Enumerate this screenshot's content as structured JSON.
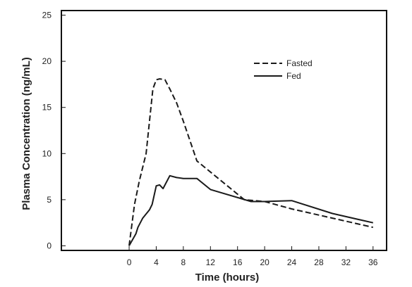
{
  "chart_data": {
    "type": "line",
    "title": "",
    "xlabel": "Time (hours)",
    "ylabel": "Plasma Concentration (ng/mL)",
    "xlim": [
      -10,
      38
    ],
    "ylim": [
      -0.5,
      25.5
    ],
    "xticks": [
      0,
      4,
      8,
      12,
      16,
      20,
      24,
      28,
      32,
      36
    ],
    "yticks": [
      0,
      5,
      10,
      15,
      20,
      25
    ],
    "grid": false,
    "legend_position": "top-right",
    "series": [
      {
        "name": "Fasted",
        "line_style": "dashed",
        "color": "#1a1a1a",
        "x": [
          0,
          0.8,
          1.5,
          2.5,
          3.5,
          4,
          4.5,
          5.3,
          6,
          7,
          8,
          10,
          17,
          20,
          24,
          30,
          36
        ],
        "y": [
          0,
          4.5,
          7,
          10,
          17,
          18,
          18.1,
          18,
          17,
          15.5,
          13.5,
          9.2,
          5,
          4.8,
          4,
          3,
          2
        ]
      },
      {
        "name": "Fed",
        "line_style": "solid",
        "color": "#1a1a1a",
        "x": [
          0,
          1,
          1.3,
          2,
          3,
          3.4,
          4,
          4.5,
          5,
          6,
          7,
          8,
          10,
          12,
          18,
          20,
          24,
          30,
          36
        ],
        "y": [
          0,
          1.3,
          2,
          3,
          3.9,
          4.5,
          6.5,
          6.6,
          6.2,
          7.6,
          7.4,
          7.3,
          7.3,
          6.1,
          4.8,
          4.8,
          4.9,
          3.5,
          2.5
        ]
      }
    ]
  }
}
